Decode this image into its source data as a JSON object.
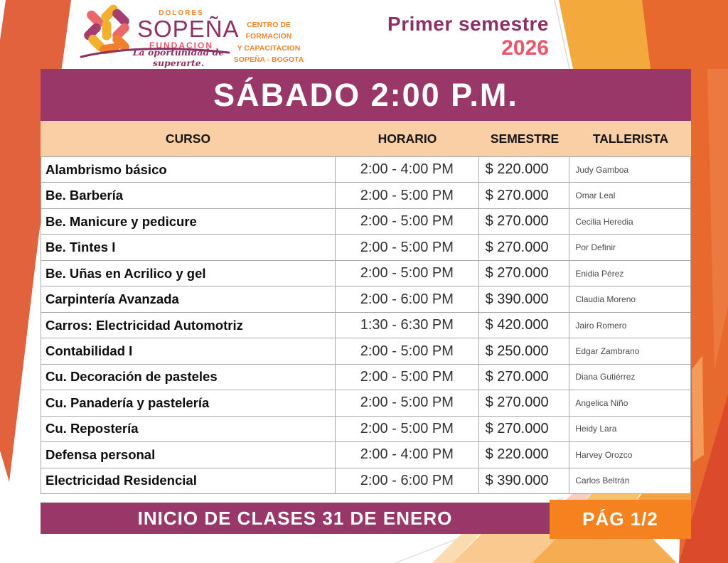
{
  "brand": {
    "dolores": "DOLORES",
    "sopena": "SOPEÑA",
    "fundacion": "FUNDACION",
    "tagline": "La oportunidad de superarte.",
    "center_lines": [
      "CENTRO DE FORMACION",
      "Y CAPACITACION",
      "SOPEÑA - BOGOTA"
    ]
  },
  "semester": {
    "line1": "Primer semestre",
    "line2": "2026"
  },
  "schedule": {
    "title": "SÁBADO 2:00 P.M.",
    "columns": [
      "CURSO",
      "HORARIO",
      "SEMESTRE",
      "TALLERISTA"
    ],
    "rows": [
      {
        "curso": "Alambrismo básico",
        "horario": "2:00 - 4:00 PM",
        "semestre": "$ 220.000",
        "tallerista": "Judy Gamboa"
      },
      {
        "curso": "Be. Barbería",
        "horario": "2:00 - 5:00 PM",
        "semestre": "$ 270.000",
        "tallerista": "Omar Leal"
      },
      {
        "curso": "Be. Manicure y pedicure",
        "horario": "2:00 - 5:00 PM",
        "semestre": "$ 270.000",
        "tallerista": "Cecilia Heredia"
      },
      {
        "curso": "Be. Tintes I",
        "horario": "2:00 - 5:00 PM",
        "semestre": "$ 270.000",
        "tallerista": "Por Definir"
      },
      {
        "curso": "Be. Uñas en Acrilico y gel",
        "horario": "2:00 - 5:00 PM",
        "semestre": "$ 270.000",
        "tallerista": "Enidia Pérez"
      },
      {
        "curso": "Carpintería Avanzada",
        "horario": "2:00 - 6:00 PM",
        "semestre": "$ 390.000",
        "tallerista": "Claudia Moreno"
      },
      {
        "curso": "Carros: Electricidad Automotriz",
        "horario": "1:30 - 6:30 PM",
        "semestre": "$ 420.000",
        "tallerista": "Jairo Romero"
      },
      {
        "curso": "Contabilidad I",
        "horario": "2:00 - 5:00 PM",
        "semestre": "$ 250.000",
        "tallerista": "Edgar Zambrano"
      },
      {
        "curso": "Cu. Decoración de pasteles",
        "horario": "2:00 - 5:00 PM",
        "semestre": "$ 270.000",
        "tallerista": "Diana Gutiérrez"
      },
      {
        "curso": "Cu. Panadería y pastelería",
        "horario": "2:00 - 5:00 PM",
        "semestre": "$ 270.000",
        "tallerista": "Angelica Niño"
      },
      {
        "curso": "Cu. Repostería",
        "horario": "2:00 - 5:00 PM",
        "semestre": "$ 270.000",
        "tallerista": "Heidy Lara"
      },
      {
        "curso": "Defensa personal",
        "horario": "2:00 - 4:00 PM",
        "semestre": "$ 220.000",
        "tallerista": "Harvey Orozco"
      },
      {
        "curso": "Electricidad Residencial",
        "horario": "2:00 - 6:00 PM",
        "semestre": "$ 390.000",
        "tallerista": "Carlos Beltrán"
      }
    ]
  },
  "footer": {
    "notice": "INICIO DE CLASES 31 DE ENERO",
    "page": "PÁG 1/2"
  },
  "colors": {
    "purple": "#983768",
    "brand_purple": "#8E3063",
    "brand_pink": "#EF5568",
    "brand_orange": "#F1862C",
    "badge_orange": "#F5821F",
    "peach": "#FBCFA6",
    "vermilion": "#E2623E",
    "yellow_band": "#F4A93D",
    "right_orange": "#E8692E",
    "right_orange_light": "#EC7A40",
    "red_corner": "#DB4A2B",
    "peach_shape": "#F9C98F",
    "peach_light": "#FBDCB1",
    "mid_orange": "#F6AC52",
    "border_gray": "#A9A9A9",
    "petal_pink": "#E8696B",
    "petal_yellow": "#F2B02F",
    "petal_magenta": "#A53E6F",
    "petal_orange": "#F08030"
  }
}
